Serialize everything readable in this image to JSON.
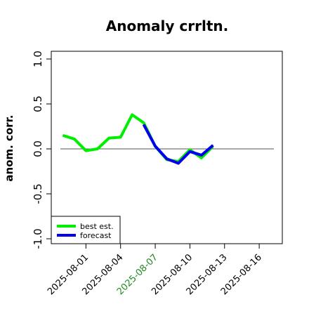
{
  "chart_data": {
    "type": "line",
    "title": "Anomaly crrltn.",
    "xlabel": "",
    "ylabel": "anom. corr.",
    "ylim": [
      -1.0,
      1.0
    ],
    "yticks": [
      "-1.0",
      "-0.5",
      "0.0",
      "0.5",
      "1.0"
    ],
    "xlim": [
      "2025-07-29",
      "2025-08-18"
    ],
    "xticks": [
      {
        "label": "2025-08-01",
        "date": "2025-08-01",
        "color": "#000000"
      },
      {
        "label": "2025-08-04",
        "date": "2025-08-04",
        "color": "#000000"
      },
      {
        "label": "2025-08-07",
        "date": "2025-08-07",
        "color": "#228B22"
      },
      {
        "label": "2025-08-10",
        "date": "2025-08-10",
        "color": "#000000"
      },
      {
        "label": "2025-08-13",
        "date": "2025-08-13",
        "color": "#000000"
      },
      {
        "label": "2025-08-16",
        "date": "2025-08-16",
        "color": "#000000"
      }
    ],
    "reference_line": 0.0,
    "series": [
      {
        "name": "best est.",
        "color": "#00ee00",
        "points": [
          {
            "x": "2025-07-30",
            "y": 0.15
          },
          {
            "x": "2025-07-31",
            "y": 0.11
          },
          {
            "x": "2025-08-01",
            "y": -0.02
          },
          {
            "x": "2025-08-02",
            "y": 0.0
          },
          {
            "x": "2025-08-03",
            "y": 0.12
          },
          {
            "x": "2025-08-04",
            "y": 0.13
          },
          {
            "x": "2025-08-05",
            "y": 0.38
          },
          {
            "x": "2025-08-06",
            "y": 0.29
          },
          {
            "x": "2025-08-07",
            "y": 0.03
          },
          {
            "x": "2025-08-08",
            "y": -0.12
          },
          {
            "x": "2025-08-09",
            "y": -0.14
          },
          {
            "x": "2025-08-10",
            "y": -0.01
          },
          {
            "x": "2025-08-11",
            "y": -0.1
          },
          {
            "x": "2025-08-12",
            "y": 0.03
          }
        ]
      },
      {
        "name": "forecast",
        "color": "#0000ee",
        "points": [
          {
            "x": "2025-08-06",
            "y": 0.27
          },
          {
            "x": "2025-08-07",
            "y": 0.03
          },
          {
            "x": "2025-08-08",
            "y": -0.11
          },
          {
            "x": "2025-08-09",
            "y": -0.16
          },
          {
            "x": "2025-08-10",
            "y": -0.03
          },
          {
            "x": "2025-08-11",
            "y": -0.07
          },
          {
            "x": "2025-08-12",
            "y": 0.04
          }
        ]
      }
    ],
    "legend": {
      "placement": "bottom-left"
    },
    "grid": false
  }
}
